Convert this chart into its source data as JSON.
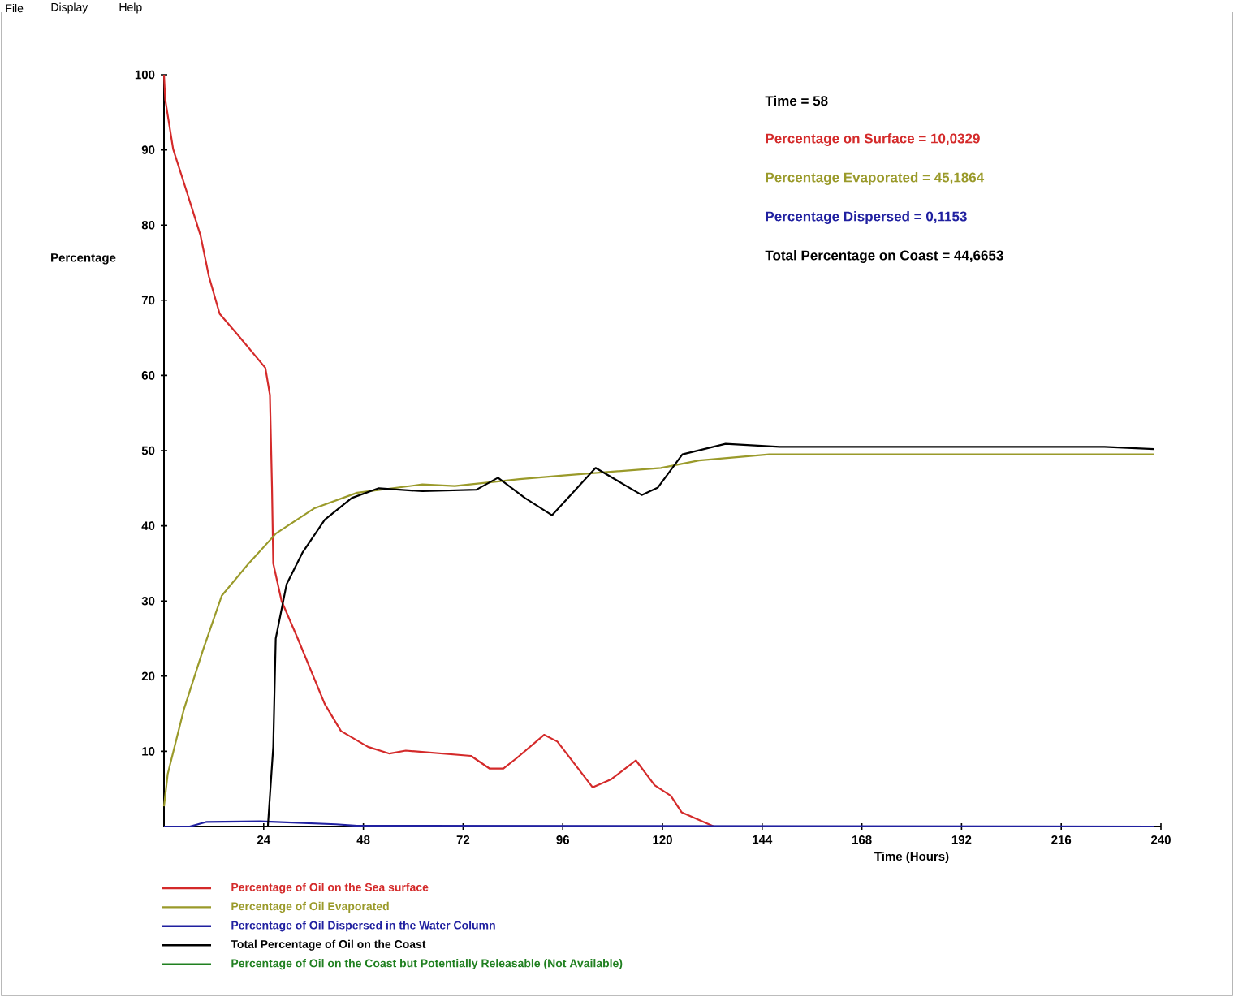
{
  "chart_data": {
    "type": "line",
    "xlabel": "Time (Hours)",
    "ylabel": "Percentage",
    "xlim": [
      0,
      240
    ],
    "ylim": [
      0,
      100
    ],
    "xticks": [
      24,
      48,
      72,
      96,
      120,
      144,
      168,
      192,
      216,
      240
    ],
    "yticks": [
      10,
      20,
      30,
      40,
      50,
      60,
      70,
      80,
      90,
      100
    ],
    "grid": false,
    "legend": "bottom",
    "marker": "none",
    "line_style": "solid",
    "annotations": [
      "File",
      "Display",
      "Help",
      "Time = 58",
      "Percentage on Surface = 10,0329",
      "Percentage Evaporated = 45,1864",
      "Percentage Dispersed = 0,1153",
      "Total Percentage on Coast = 44,6653"
    ],
    "series": [
      {
        "name": "Percentage of Oil on the Sea surface",
        "color": "#d42a2a",
        "x": [
          0,
          0.3,
          2.2,
          5.5,
          8.8,
          10.8,
          13.4,
          17.9,
          24.4,
          25.5,
          26,
          26.3,
          28.3,
          32.2,
          38.7,
          42.6,
          49.1,
          54.3,
          58.2,
          73.9,
          78.4,
          81.7,
          84.9,
          91.5,
          94.7,
          103.2,
          107.7,
          113.6,
          118.1,
          122,
          124.6,
          132.4
        ],
        "values": [
          100,
          96.7,
          90.1,
          84.4,
          78.6,
          73.2,
          68.2,
          65.3,
          61,
          57.4,
          45.1,
          35,
          30,
          25,
          16.3,
          12.7,
          10.6,
          9.7,
          10.1,
          9.4,
          7.7,
          7.7,
          9.1,
          12.2,
          11.3,
          5.2,
          6.3,
          8.8,
          5.5,
          4.1,
          1.9,
          0
        ]
      },
      {
        "name": "Percentage of Oil Evaporated",
        "color": "#9a9a2a",
        "x": [
          0,
          0.9,
          4.8,
          9.4,
          13.9,
          20.4,
          27,
          36.1,
          46.5,
          62.2,
          70,
          85.6,
          96.1,
          119.6,
          128.8,
          145.7,
          238.3
        ],
        "values": [
          2.7,
          7,
          15.6,
          23.5,
          30.7,
          35,
          39,
          42.3,
          44.4,
          45.5,
          45.3,
          46.2,
          46.7,
          47.7,
          48.7,
          49.5,
          49.5
        ]
      },
      {
        "name": "Percentage of Oil Dispersed in the Water Column",
        "color": "#2020a0",
        "x": [
          0,
          6.2,
          10.1,
          23.1,
          27,
          41.4,
          46.5,
          238.3
        ],
        "values": [
          0,
          0,
          0.6,
          0.7,
          0.6,
          0.3,
          0.1,
          0
        ]
      },
      {
        "name": "Total Percentage of Oil on the Coast",
        "color": "#000000",
        "x": [
          25,
          26.3,
          26.9,
          29.5,
          33.4,
          38.7,
          45.2,
          51.7,
          62.2,
          75.2,
          80.4,
          86.9,
          93.4,
          103.9,
          115,
          118.9,
          124.8,
          135.2,
          148.2,
          226.4,
          238.3
        ],
        "values": [
          0,
          10.6,
          25,
          32.2,
          36.5,
          40.8,
          43.7,
          45,
          44.6,
          44.8,
          46.4,
          43.7,
          41.4,
          47.7,
          44.1,
          45.1,
          49.5,
          50.9,
          50.5,
          50.5,
          50.2
        ]
      },
      {
        "name": "Percentage of Oil on the Coast but Potentially Releasable (Not Available)",
        "color": "#208020"
      }
    ]
  }
}
